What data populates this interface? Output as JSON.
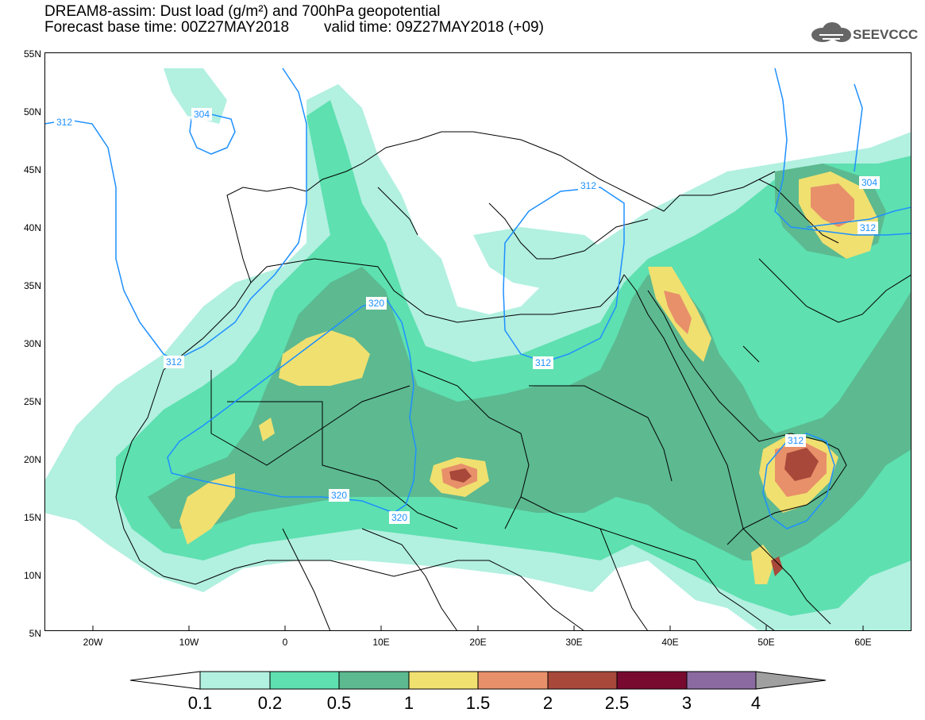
{
  "title": {
    "line1": "DREAM8-assim: Dust load (g/m²) and 700hPa geopotential",
    "base_time": "Forecast base time: 00Z27MAY2018",
    "valid_time": "valid time: 09Z27MAY2018 (+09)"
  },
  "logo": {
    "text": "SEEVCCC",
    "icon": "cloud-logo-icon"
  },
  "map": {
    "lon_range": [
      -25,
      65
    ],
    "lat_range": [
      5,
      55
    ],
    "lat_ticks": [
      "55N",
      "50N",
      "45N",
      "40N",
      "35N",
      "30N",
      "25N",
      "20N",
      "15N",
      "10N",
      "5N"
    ],
    "lon_ticks": [
      "20W",
      "10W",
      "0",
      "10E",
      "20E",
      "30E",
      "40E",
      "50E",
      "60E"
    ],
    "contour_labels": [
      "312",
      "304",
      "312",
      "312",
      "320",
      "312",
      "320",
      "320",
      "312",
      "312",
      "304"
    ],
    "contour_color": "#1e90ff"
  },
  "colorbar": {
    "levels": [
      "0.1",
      "0.2",
      "0.5",
      "1",
      "1.5",
      "2",
      "2.5",
      "3",
      "4"
    ],
    "colors": [
      "#ffffff",
      "#b2f0e0",
      "#5ee0b0",
      "#5cb990",
      "#f0e070",
      "#e8906a",
      "#a8483a",
      "#780a30",
      "#8a6aa0",
      "#a0a0a0"
    ]
  }
}
